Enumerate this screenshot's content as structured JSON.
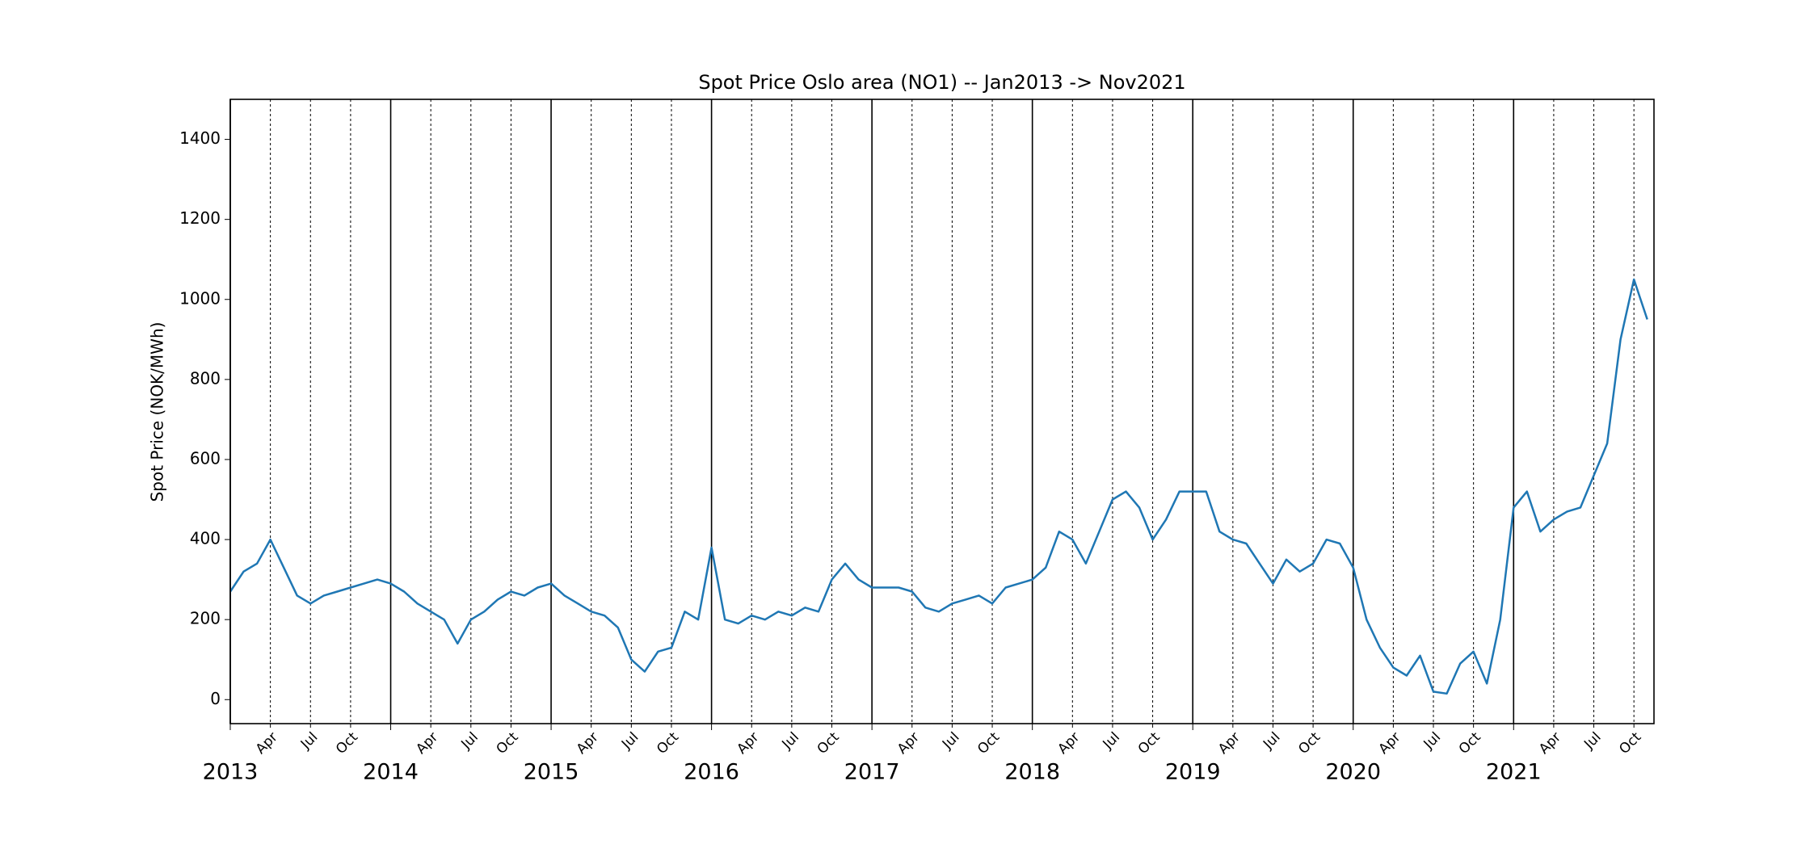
{
  "chart_data": {
    "type": "line",
    "title": "Spot Price Oslo area (NO1) -- Jan2013 -> Nov2021",
    "y_label": "Spot Price (NOK/MWh)",
    "x": [
      "2013-01",
      "2013-02",
      "2013-03",
      "2013-04",
      "2013-05",
      "2013-06",
      "2013-07",
      "2013-08",
      "2013-09",
      "2013-10",
      "2013-11",
      "2013-12",
      "2014-01",
      "2014-02",
      "2014-03",
      "2014-04",
      "2014-05",
      "2014-06",
      "2014-07",
      "2014-08",
      "2014-09",
      "2014-10",
      "2014-11",
      "2014-12",
      "2015-01",
      "2015-02",
      "2015-03",
      "2015-04",
      "2015-05",
      "2015-06",
      "2015-07",
      "2015-08",
      "2015-09",
      "2015-10",
      "2015-11",
      "2015-12",
      "2016-01",
      "2016-02",
      "2016-03",
      "2016-04",
      "2016-05",
      "2016-06",
      "2016-07",
      "2016-08",
      "2016-09",
      "2016-10",
      "2016-11",
      "2016-12",
      "2017-01",
      "2017-02",
      "2017-03",
      "2017-04",
      "2017-05",
      "2017-06",
      "2017-07",
      "2017-08",
      "2017-09",
      "2017-10",
      "2017-11",
      "2017-12",
      "2018-01",
      "2018-02",
      "2018-03",
      "2018-04",
      "2018-05",
      "2018-06",
      "2018-07",
      "2018-08",
      "2018-09",
      "2018-10",
      "2018-11",
      "2018-12",
      "2019-01",
      "2019-02",
      "2019-03",
      "2019-04",
      "2019-05",
      "2019-06",
      "2019-07",
      "2019-08",
      "2019-09",
      "2019-10",
      "2019-11",
      "2019-12",
      "2020-01",
      "2020-02",
      "2020-03",
      "2020-04",
      "2020-05",
      "2020-06",
      "2020-07",
      "2020-08",
      "2020-09",
      "2020-10",
      "2020-11",
      "2020-12",
      "2021-01",
      "2021-02",
      "2021-03",
      "2021-04",
      "2021-05",
      "2021-06",
      "2021-07",
      "2021-08",
      "2021-09",
      "2021-10",
      "2021-11"
    ],
    "series": [
      {
        "name": "NO1",
        "color": "#1f77b4",
        "values": [
          270,
          320,
          340,
          400,
          330,
          260,
          240,
          260,
          270,
          280,
          290,
          300,
          290,
          270,
          240,
          220,
          200,
          140,
          200,
          220,
          250,
          270,
          260,
          280,
          290,
          260,
          240,
          220,
          210,
          180,
          100,
          70,
          120,
          130,
          220,
          200,
          380,
          200,
          190,
          210,
          200,
          220,
          210,
          230,
          220,
          300,
          340,
          300,
          280,
          280,
          280,
          270,
          230,
          220,
          240,
          250,
          260,
          240,
          280,
          290,
          300,
          330,
          420,
          400,
          340,
          420,
          500,
          520,
          480,
          400,
          450,
          520,
          520,
          520,
          420,
          400,
          390,
          340,
          290,
          350,
          320,
          340,
          400,
          390,
          330,
          200,
          130,
          80,
          60,
          110,
          20,
          15,
          90,
          120,
          40,
          200,
          480,
          520,
          420,
          450,
          470,
          480,
          560,
          640,
          900,
          1050,
          950
        ]
      }
    ],
    "xlim": [
      "2013-01",
      "2021-11"
    ],
    "ylim": [
      -60,
      1500
    ],
    "yticks": [
      0,
      200,
      400,
      600,
      800,
      1000,
      1200,
      1400
    ],
    "xticks": [
      {
        "value": "2013-01",
        "label": "2013"
      },
      {
        "value": "2014-01",
        "label": "2014"
      },
      {
        "value": "2015-01",
        "label": "2015"
      },
      {
        "value": "2016-01",
        "label": "2016"
      },
      {
        "value": "2017-01",
        "label": "2017"
      },
      {
        "value": "2018-01",
        "label": "2018"
      },
      {
        "value": "2019-01",
        "label": "2019"
      },
      {
        "value": "2020-01",
        "label": "2020"
      },
      {
        "value": "2021-01",
        "label": "2021"
      }
    ],
    "xticks_minor": [
      {
        "value": "2013-04",
        "label": "Apr"
      },
      {
        "value": "2013-07",
        "label": "Jul"
      },
      {
        "value": "2013-10",
        "label": "Oct"
      },
      {
        "value": "2014-04",
        "label": "Apr"
      },
      {
        "value": "2014-07",
        "label": "Jul"
      },
      {
        "value": "2014-10",
        "label": "Oct"
      },
      {
        "value": "2015-04",
        "label": "Apr"
      },
      {
        "value": "2015-07",
        "label": "Jul"
      },
      {
        "value": "2015-10",
        "label": "Oct"
      },
      {
        "value": "2016-04",
        "label": "Apr"
      },
      {
        "value": "2016-07",
        "label": "Jul"
      },
      {
        "value": "2016-10",
        "label": "Oct"
      },
      {
        "value": "2017-04",
        "label": "Apr"
      },
      {
        "value": "2017-07",
        "label": "Jul"
      },
      {
        "value": "2017-10",
        "label": "Oct"
      },
      {
        "value": "2018-04",
        "label": "Apr"
      },
      {
        "value": "2018-07",
        "label": "Jul"
      },
      {
        "value": "2018-10",
        "label": "Oct"
      },
      {
        "value": "2019-04",
        "label": "Apr"
      },
      {
        "value": "2019-07",
        "label": "Jul"
      },
      {
        "value": "2019-10",
        "label": "Oct"
      },
      {
        "value": "2020-04",
        "label": "Apr"
      },
      {
        "value": "2020-07",
        "label": "Jul"
      },
      {
        "value": "2020-10",
        "label": "Oct"
      },
      {
        "value": "2021-04",
        "label": "Apr"
      },
      {
        "value": "2021-07",
        "label": "Jul"
      },
      {
        "value": "2021-10",
        "label": "Oct"
      }
    ]
  }
}
